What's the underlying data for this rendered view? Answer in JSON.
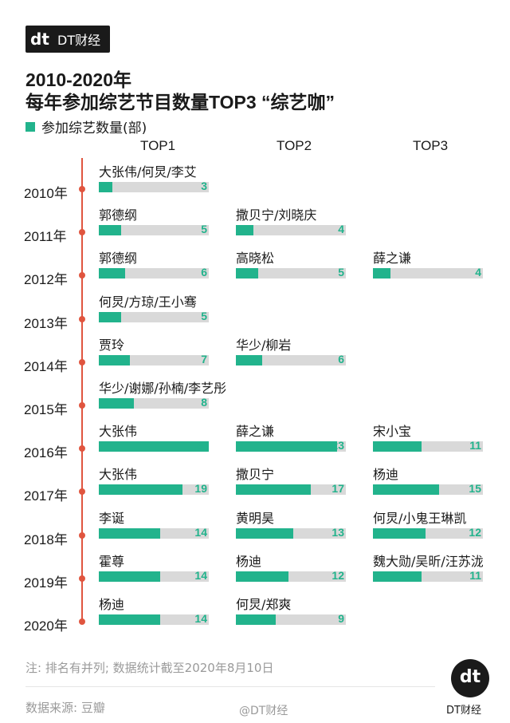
{
  "brand": {
    "mark": "dt",
    "name": "DT财经"
  },
  "title_line1": "2010-2020年",
  "title_line2": "每年参加综艺节目数量TOP3 “综艺咖”",
  "legend_label": "参加综艺数量(部)",
  "note": "注: 排名有并列; 数据统计截至2020年8月10日",
  "source": "数据来源: 豆瓣",
  "weibo": "@DT财经",
  "colors": {
    "bar": "#22b38c",
    "track": "#d9d9d9",
    "timeline": "#e0553f",
    "text": "#1a1a1a"
  },
  "chart_data": {
    "type": "bar",
    "orientation": "horizontal",
    "columns": [
      "TOP1",
      "TOP2",
      "TOP3"
    ],
    "xlim": [
      0,
      25
    ],
    "rows": [
      {
        "year": "2010年",
        "entries": [
          {
            "name": "大张伟/何炅/李艾",
            "value": 3
          }
        ]
      },
      {
        "year": "2011年",
        "entries": [
          {
            "name": "郭德纲",
            "value": 5
          },
          {
            "name": "撒贝宁/刘晓庆",
            "value": 4
          }
        ]
      },
      {
        "year": "2012年",
        "entries": [
          {
            "name": "郭德纲",
            "value": 6
          },
          {
            "name": "高晓松",
            "value": 5
          },
          {
            "name": "薛之谦",
            "value": 4
          }
        ]
      },
      {
        "year": "2013年",
        "entries": [
          {
            "name": "何炅/方琼/王小骞",
            "value": 5
          }
        ]
      },
      {
        "year": "2014年",
        "entries": [
          {
            "name": "贾玲",
            "value": 7
          },
          {
            "name": "华少/柳岩",
            "value": 6
          }
        ]
      },
      {
        "year": "2015年",
        "entries": [
          {
            "name": "华少/谢娜/孙楠/李艺彤",
            "value": 8
          }
        ]
      },
      {
        "year": "2016年",
        "entries": [
          {
            "name": "大张伟",
            "value": 25
          },
          {
            "name": "薛之谦",
            "value": 23
          },
          {
            "name": "宋小宝",
            "value": 11
          }
        ]
      },
      {
        "year": "2017年",
        "entries": [
          {
            "name": "大张伟",
            "value": 19
          },
          {
            "name": "撒贝宁",
            "value": 17
          },
          {
            "name": "杨迪",
            "value": 15
          }
        ]
      },
      {
        "year": "2018年",
        "entries": [
          {
            "name": "李诞",
            "value": 14
          },
          {
            "name": "黄明昊",
            "value": 13
          },
          {
            "name": "何炅/小鬼王琳凯",
            "value": 12
          }
        ]
      },
      {
        "year": "2019年",
        "entries": [
          {
            "name": "霍尊",
            "value": 14
          },
          {
            "name": "杨迪",
            "value": 12
          },
          {
            "name": "魏大勋/吴昕/汪苏泷",
            "value": 11
          }
        ]
      },
      {
        "year": "2020年",
        "entries": [
          {
            "name": "杨迪",
            "value": 14
          },
          {
            "name": "何炅/郑爽",
            "value": 9
          }
        ]
      }
    ]
  }
}
